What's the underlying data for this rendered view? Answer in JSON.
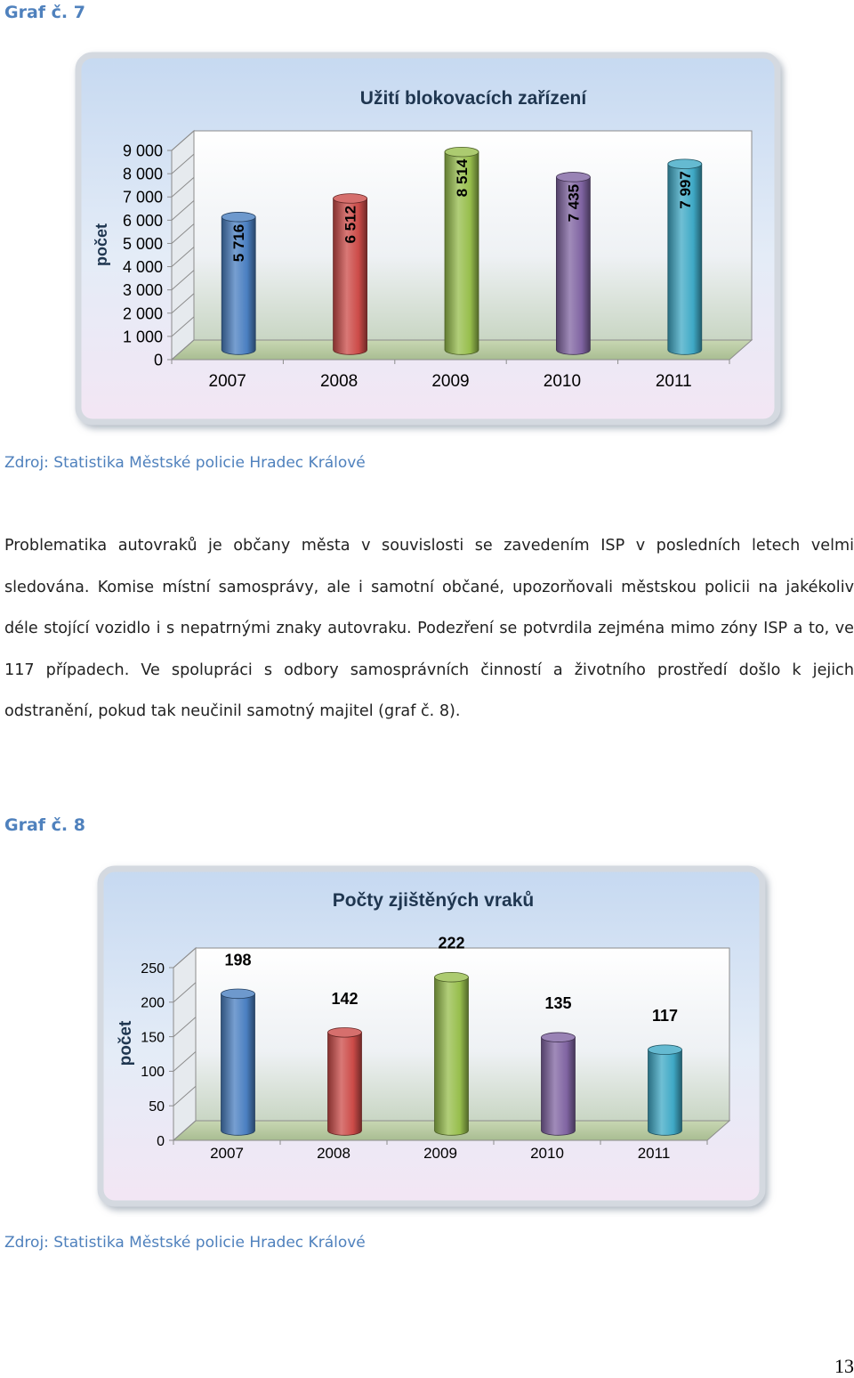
{
  "charts": [
    {
      "heading": "Graf č. 7",
      "source": "Zdroj: Statistika Městské policie Hradec Králové",
      "chart_data": {
        "type": "bar",
        "title": "Užití blokovacích zařízení",
        "xlabel": "",
        "ylabel": "počet",
        "categories": [
          "2007",
          "2008",
          "2009",
          "2010",
          "2011"
        ],
        "values": [
          5716,
          6512,
          8514,
          7435,
          7997
        ],
        "data_labels": [
          "5 716",
          "6 512",
          "8 514",
          "7 435",
          "7 997"
        ],
        "data_label_orientation": "vertical",
        "ylim": [
          0,
          9000
        ],
        "yticks": [
          0,
          1000,
          2000,
          3000,
          4000,
          5000,
          6000,
          7000,
          8000,
          9000
        ],
        "ytick_labels": [
          "0",
          "1 000",
          "2 000",
          "3 000",
          "4 000",
          "5 000",
          "6 000",
          "7 000",
          "8 000",
          "9 000"
        ],
        "grid": false,
        "legend": "none",
        "style": "3d-cylinder"
      }
    },
    {
      "heading": "Graf č. 8",
      "source": "Zdroj: Statistika Městské policie Hradec Králové",
      "chart_data": {
        "type": "bar",
        "title": "Počty zjištěných vraků",
        "xlabel": "",
        "ylabel": "počet",
        "categories": [
          "2007",
          "2008",
          "2009",
          "2010",
          "2011"
        ],
        "values": [
          198,
          142,
          222,
          135,
          117
        ],
        "data_labels": [
          "198",
          "142",
          "222",
          "135",
          "117"
        ],
        "data_label_orientation": "horizontal",
        "ylim": [
          0,
          250
        ],
        "yticks": [
          0,
          50,
          100,
          150,
          200,
          250
        ],
        "ytick_labels": [
          "0",
          "50",
          "100",
          "150",
          "200",
          "250"
        ],
        "grid": false,
        "legend": "none",
        "style": "3d-cylinder"
      }
    }
  ],
  "bar_colors": [
    "#4a7fc1",
    "#cc4b48",
    "#97be4c",
    "#8064a2",
    "#3fa9c6"
  ],
  "paragraph": "Problematika autovraků je občany města v souvislosti se zavedením ISP v posledních letech velmi sledována. Komise místní samosprávy, ale i samotní občané, upozorňovali městskou policii na jakékoliv déle stojící vozidlo i s nepatrnými znaky autovraku. Podezření se potvrdila zejména mimo zóny ISP a to, ve 117 případech. Ve spolupráci s odbory samosprávních činností a životního prostředí došlo k jejich odstranění, pokud tak neučinil samotný majitel (graf č. 8).",
  "page_number": "13"
}
